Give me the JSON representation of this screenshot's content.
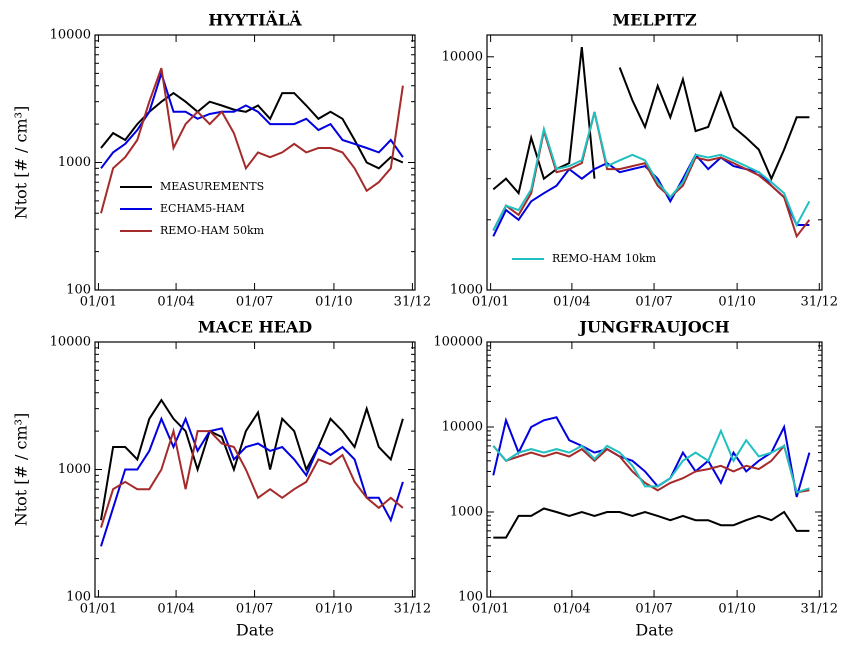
{
  "chart_data": [
    {
      "type": "line",
      "title": "HYYTIÄLÄ",
      "ylabel": "Ntot [# / cm³]",
      "log_y": true,
      "xlim": [
        -3,
        368
      ],
      "ylim": [
        100,
        10000
      ],
      "yticks": [
        100,
        1000,
        10000
      ],
      "xticks": [
        {
          "value": 1,
          "label": "01/01"
        },
        {
          "value": 91,
          "label": "01/04"
        },
        {
          "value": 182,
          "label": "01/07"
        },
        {
          "value": 274,
          "label": "01/10"
        },
        {
          "value": 365,
          "label": "31/12"
        }
      ],
      "legend": "lower left",
      "x": [
        4,
        18,
        32,
        46,
        60,
        74,
        88,
        102,
        116,
        130,
        144,
        158,
        172,
        186,
        200,
        214,
        228,
        242,
        256,
        270,
        284,
        298,
        312,
        326,
        340,
        354
      ],
      "series": [
        {
          "name": "MEASUREMENTS",
          "color": "#000000",
          "values": [
            1300,
            1700,
            1500,
            2000,
            2500,
            3000,
            3500,
            3000,
            2500,
            3000,
            2800,
            2600,
            2500,
            2800,
            2200,
            3500,
            3500,
            2800,
            2200,
            2500,
            2200,
            1500,
            1000,
            900,
            1100,
            1000
          ]
        },
        {
          "name": "ECHAM5-HAM",
          "color": "#0000e0",
          "values": [
            900,
            1200,
            1400,
            1800,
            2500,
            5000,
            2500,
            2500,
            2200,
            2400,
            2500,
            2500,
            2800,
            2500,
            2000,
            2000,
            2000,
            2200,
            1800,
            2000,
            1500,
            1400,
            1300,
            1200,
            1500,
            1100
          ]
        },
        {
          "name": "REMO-HAM 50km",
          "color": "#a52a2a",
          "values": [
            400,
            900,
            1100,
            1500,
            3000,
            5500,
            1300,
            2000,
            2500,
            2000,
            2500,
            1700,
            900,
            1200,
            1100,
            1200,
            1400,
            1200,
            1300,
            1300,
            1200,
            900,
            600,
            700,
            900,
            4000
          ]
        }
      ]
    },
    {
      "type": "line",
      "title": "MELPITZ",
      "log_y": true,
      "xlim": [
        -3,
        368
      ],
      "ylim": [
        1000,
        12400
      ],
      "yticks": [
        1000,
        10000
      ],
      "xticks": [
        {
          "value": 1,
          "label": "01/01"
        },
        {
          "value": 91,
          "label": "01/04"
        },
        {
          "value": 182,
          "label": "01/07"
        },
        {
          "value": 274,
          "label": "01/10"
        },
        {
          "value": 365,
          "label": "31/12"
        }
      ],
      "legend": "lower left",
      "x": [
        4,
        18,
        32,
        46,
        60,
        74,
        88,
        102,
        116,
        130,
        144,
        158,
        172,
        186,
        200,
        214,
        228,
        242,
        256,
        270,
        284,
        298,
        312,
        326,
        340,
        354
      ],
      "series": [
        {
          "name": "MEASUREMENTS",
          "color": "#000000",
          "legend": false,
          "values": [
            2700,
            3000,
            2600,
            4500,
            3000,
            3300,
            3500,
            11000,
            3000,
            null,
            9000,
            6500,
            5000,
            7500,
            5500,
            8000,
            4800,
            5000,
            7000,
            5000,
            4500,
            4000,
            3000,
            4000,
            5500,
            5500
          ]
        },
        {
          "name": "ECHAM5-HAM",
          "color": "#0000e0",
          "legend": false,
          "values": [
            1700,
            2200,
            2000,
            2400,
            2600,
            2800,
            3300,
            3000,
            3300,
            3500,
            3200,
            3300,
            3400,
            3000,
            2400,
            3000,
            3800,
            3300,
            3700,
            3400,
            3300,
            3200,
            2800,
            2500,
            1900,
            1900
          ]
        },
        {
          "name": "REMO-HAM 50km",
          "color": "#a52a2a",
          "legend": false,
          "values": [
            1800,
            2300,
            2100,
            2600,
            4800,
            3200,
            3300,
            3500,
            5800,
            3300,
            3300,
            3400,
            3500,
            2800,
            2500,
            2800,
            3700,
            3600,
            3700,
            3500,
            3300,
            3100,
            2800,
            2500,
            1700,
            2000
          ]
        },
        {
          "name": "REMO-HAM 10km",
          "color": "#20c0c0",
          "values": [
            1800,
            2300,
            2200,
            2700,
            4900,
            3300,
            3400,
            3600,
            5800,
            3400,
            3600,
            3800,
            3600,
            2900,
            2500,
            2900,
            3800,
            3700,
            3800,
            3600,
            3400,
            3200,
            2900,
            2600,
            1900,
            2400
          ]
        }
      ]
    },
    {
      "type": "line",
      "title": "MACE HEAD",
      "ylabel": "Ntot [# / cm³]",
      "xlabel": "Date",
      "log_y": true,
      "xlim": [
        -3,
        368
      ],
      "ylim": [
        100,
        10000
      ],
      "yticks": [
        100,
        1000,
        10000
      ],
      "xticks": [
        {
          "value": 1,
          "label": "01/01"
        },
        {
          "value": 91,
          "label": "01/04"
        },
        {
          "value": 182,
          "label": "01/07"
        },
        {
          "value": 274,
          "label": "01/10"
        },
        {
          "value": 365,
          "label": "31/12"
        }
      ],
      "x": [
        4,
        18,
        32,
        46,
        60,
        74,
        88,
        102,
        116,
        130,
        144,
        158,
        172,
        186,
        200,
        214,
        228,
        242,
        256,
        270,
        284,
        298,
        312,
        326,
        340,
        354
      ],
      "series": [
        {
          "name": "MEASUREMENTS",
          "color": "#000000",
          "values": [
            400,
            1500,
            1500,
            1200,
            2500,
            3500,
            2500,
            2000,
            1000,
            2000,
            1800,
            1000,
            2000,
            2800,
            1000,
            2500,
            2000,
            1000,
            1500,
            2500,
            2000,
            1500,
            3000,
            1500,
            1200,
            2500
          ]
        },
        {
          "name": "ECHAM5-HAM",
          "color": "#0000e0",
          "values": [
            250,
            500,
            1000,
            1000,
            1400,
            2500,
            1500,
            2500,
            1400,
            2000,
            2100,
            1200,
            1500,
            1600,
            1400,
            1500,
            1200,
            900,
            1500,
            1300,
            1500,
            1200,
            600,
            600,
            400,
            800
          ]
        },
        {
          "name": "REMO-HAM 50km",
          "color": "#a52a2a",
          "values": [
            350,
            700,
            800,
            700,
            700,
            1000,
            2000,
            700,
            2000,
            2000,
            1600,
            1500,
            1000,
            600,
            700,
            600,
            700,
            800,
            1200,
            1100,
            1300,
            800,
            600,
            500,
            600,
            500
          ]
        }
      ]
    },
    {
      "type": "line",
      "title": "JUNGFRAUJOCH",
      "xlabel": "Date",
      "log_y": true,
      "xlim": [
        -3,
        368
      ],
      "ylim": [
        100,
        100000
      ],
      "yticks": [
        100,
        1000,
        10000,
        100000
      ],
      "xticks": [
        {
          "value": 1,
          "label": "01/01"
        },
        {
          "value": 91,
          "label": "01/04"
        },
        {
          "value": 182,
          "label": "01/07"
        },
        {
          "value": 274,
          "label": "01/10"
        },
        {
          "value": 365,
          "label": "31/12"
        }
      ],
      "x": [
        4,
        18,
        32,
        46,
        60,
        74,
        88,
        102,
        116,
        130,
        144,
        158,
        172,
        186,
        200,
        214,
        228,
        242,
        256,
        270,
        284,
        298,
        312,
        326,
        340,
        354
      ],
      "series": [
        {
          "name": "MEASUREMENTS",
          "color": "#000000",
          "values": [
            500,
            500,
            900,
            900,
            1100,
            1000,
            900,
            1000,
            900,
            1000,
            1000,
            900,
            1000,
            900,
            800,
            900,
            800,
            800,
            700,
            700,
            800,
            900,
            800,
            1000,
            600,
            600
          ]
        },
        {
          "name": "ECHAM5-HAM",
          "color": "#0000e0",
          "values": [
            2700,
            12000,
            5000,
            10000,
            12000,
            13000,
            7000,
            6000,
            5000,
            5500,
            4500,
            4000,
            3000,
            2000,
            2500,
            5000,
            3000,
            4000,
            2200,
            5000,
            3000,
            4000,
            5000,
            10000,
            1500,
            5000
          ]
        },
        {
          "name": "REMO-HAM 50km",
          "color": "#a52a2a",
          "values": [
            6000,
            4000,
            4500,
            5000,
            4500,
            5000,
            4500,
            5500,
            4000,
            5500,
            4500,
            3000,
            2200,
            1800,
            2200,
            2500,
            3000,
            3200,
            3500,
            3000,
            3500,
            3200,
            4000,
            6000,
            1700,
            1800
          ]
        },
        {
          "name": "REMO-HAM 10km",
          "color": "#20c0c0",
          "values": [
            6000,
            4000,
            5000,
            5500,
            5000,
            5500,
            5000,
            6000,
            4200,
            6000,
            5000,
            3500,
            2000,
            2000,
            2500,
            4000,
            5000,
            4000,
            9000,
            4000,
            7000,
            4500,
            5000,
            6000,
            1700,
            1900
          ]
        }
      ]
    }
  ]
}
